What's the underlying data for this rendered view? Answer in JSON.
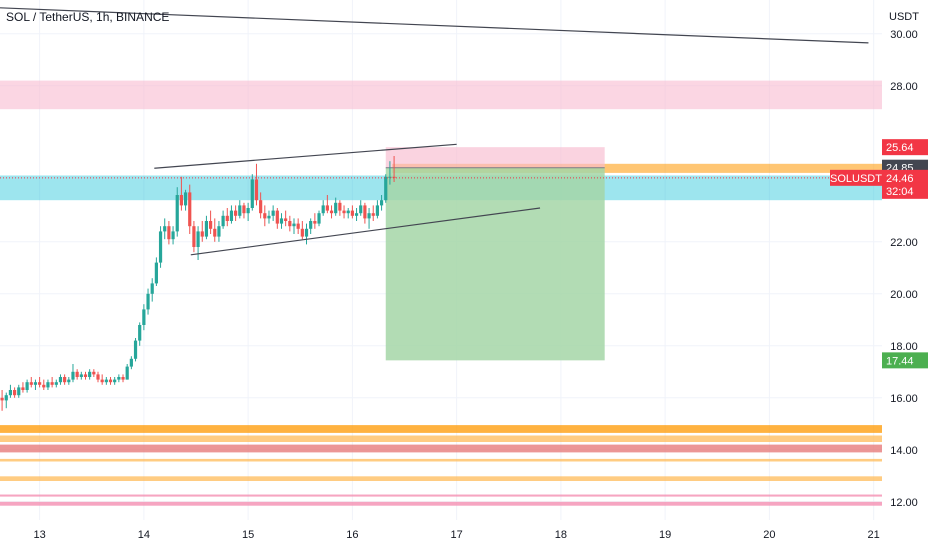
{
  "header": {
    "symbol_title": "SOL / TetherUS, 1h, BINANCE",
    "price_unit": "USDT"
  },
  "chart_data": {
    "type": "candlestick",
    "symbol": "SOLUSDT",
    "ylim": [
      11.3,
      31.3
    ],
    "xlim": [
      12.62,
      21.08
    ],
    "y_ticks": [
      "30.00",
      "28.00",
      "22.00",
      "20.00",
      "18.00",
      "16.00",
      "14.00",
      "12.00"
    ],
    "x_ticks": [
      "13",
      "14",
      "15",
      "16",
      "17",
      "18",
      "19",
      "20",
      "21"
    ],
    "price_badges": [
      {
        "label": "25.64",
        "value": 25.64,
        "color": "#f23645"
      },
      {
        "label": "24.85",
        "value": 24.85,
        "color": "#434651"
      },
      {
        "label": "24.46",
        "value": 24.46,
        "color": "#f23645"
      },
      {
        "label": "32:04",
        "value": 23.96,
        "color": "#f23645"
      },
      {
        "label": "17.44",
        "value": 17.44,
        "color": "#4caf50"
      }
    ],
    "symbol_badge": "SOLUSDT",
    "last_price": 24.46,
    "zones": [
      {
        "name": "resistance-zone-28",
        "y1": 28.2,
        "y2": 27.1,
        "color": "#f8bbd0",
        "opacity": 0.6
      },
      {
        "name": "support-zone-24",
        "y1": 24.55,
        "y2": 23.6,
        "color": "#26c6da",
        "opacity": 0.45
      },
      {
        "name": "support-zone-14-8",
        "y1": 14.95,
        "y2": 14.65,
        "color": "#ff9800",
        "opacity": 0.75
      },
      {
        "name": "support-zone-14-4",
        "y1": 14.55,
        "y2": 14.3,
        "color": "#ffb74d",
        "opacity": 0.7
      },
      {
        "name": "support-zone-14-1",
        "y1": 14.2,
        "y2": 13.9,
        "color": "#e57373",
        "opacity": 0.75
      },
      {
        "name": "support-zone-13-6",
        "y1": 13.65,
        "y2": 13.55,
        "color": "#ffb74d",
        "opacity": 0.7
      },
      {
        "name": "support-zone-12-9",
        "y1": 12.98,
        "y2": 12.8,
        "color": "#ffb74d",
        "opacity": 0.7
      },
      {
        "name": "support-zone-12-2",
        "y1": 12.28,
        "y2": 12.2,
        "color": "#f48fb1",
        "opacity": 0.8
      },
      {
        "name": "support-zone-11-9",
        "y1": 12.0,
        "y2": 11.85,
        "color": "#f48fb1",
        "opacity": 0.8
      }
    ],
    "horizontal_bands": [
      {
        "name": "orange-band-24-85",
        "x_start": 16.38,
        "y1": 25.0,
        "y2": 24.65,
        "color": "#ff9800",
        "opacity": 0.55
      }
    ],
    "position": {
      "entry": 24.85,
      "stop": 25.64,
      "target": 17.44,
      "x_start": 16.32,
      "x_end": 18.42,
      "stop_color": "#f8bbd0",
      "target_color": "#a5d6a7"
    },
    "trendlines": [
      {
        "name": "long-trendline",
        "x1": 12.62,
        "y1": 31.0,
        "x2": 20.95,
        "y2": 29.65
      },
      {
        "name": "wedge-upper",
        "x1": 14.1,
        "y1": 24.83,
        "x2": 17.0,
        "y2": 25.75
      },
      {
        "name": "wedge-lower",
        "x1": 14.45,
        "y1": 21.5,
        "x2": 17.8,
        "y2": 23.3
      }
    ],
    "up_color": "#26a69a",
    "down_color": "#ef5350",
    "candles": [
      [
        12.64,
        16.0,
        16.3,
        15.5,
        15.9
      ],
      [
        12.68,
        15.9,
        16.2,
        15.6,
        16.1
      ],
      [
        12.72,
        16.1,
        16.5,
        16.0,
        16.3
      ],
      [
        12.76,
        16.3,
        16.4,
        16.0,
        16.1
      ],
      [
        12.8,
        16.1,
        16.5,
        16.0,
        16.4
      ],
      [
        12.84,
        16.4,
        16.6,
        16.2,
        16.3
      ],
      [
        12.88,
        16.3,
        16.7,
        16.2,
        16.6
      ],
      [
        12.92,
        16.6,
        16.8,
        16.4,
        16.5
      ],
      [
        12.96,
        16.5,
        16.7,
        16.3,
        16.6
      ],
      [
        13.0,
        16.6,
        16.8,
        16.4,
        16.5
      ],
      [
        13.04,
        16.5,
        16.7,
        16.3,
        16.4
      ],
      [
        13.08,
        16.4,
        16.7,
        16.3,
        16.6
      ],
      [
        13.12,
        16.6,
        16.8,
        16.4,
        16.5
      ],
      [
        13.16,
        16.5,
        16.7,
        16.4,
        16.6
      ],
      [
        13.2,
        16.6,
        16.9,
        16.5,
        16.8
      ],
      [
        13.24,
        16.8,
        16.9,
        16.5,
        16.6
      ],
      [
        13.28,
        16.6,
        16.8,
        16.5,
        16.7
      ],
      [
        13.32,
        16.7,
        17.3,
        16.6,
        17.0
      ],
      [
        13.36,
        17.0,
        17.1,
        16.7,
        16.8
      ],
      [
        13.4,
        16.8,
        17.0,
        16.7,
        16.9
      ],
      [
        13.44,
        16.9,
        17.0,
        16.7,
        16.8
      ],
      [
        13.48,
        16.8,
        17.1,
        16.7,
        17.0
      ],
      [
        13.52,
        17.0,
        17.1,
        16.8,
        16.9
      ],
      [
        13.56,
        16.9,
        17.0,
        16.6,
        16.7
      ],
      [
        13.6,
        16.7,
        16.9,
        16.5,
        16.6
      ],
      [
        13.64,
        16.6,
        16.8,
        16.5,
        16.7
      ],
      [
        13.68,
        16.7,
        16.8,
        16.5,
        16.6
      ],
      [
        13.72,
        16.6,
        16.8,
        16.5,
        16.7
      ],
      [
        13.76,
        16.7,
        16.9,
        16.6,
        16.8
      ],
      [
        13.8,
        16.8,
        16.9,
        16.6,
        16.7
      ],
      [
        13.84,
        16.7,
        17.3,
        16.7,
        17.2
      ],
      [
        13.88,
        17.2,
        17.6,
        17.1,
        17.5
      ],
      [
        13.92,
        17.5,
        18.3,
        17.4,
        18.2
      ],
      [
        13.96,
        18.2,
        18.9,
        18.0,
        18.8
      ],
      [
        14.0,
        18.8,
        19.6,
        18.6,
        19.4
      ],
      [
        14.04,
        19.4,
        20.2,
        19.2,
        20.0
      ],
      [
        14.08,
        20.0,
        20.6,
        19.7,
        20.4
      ],
      [
        14.12,
        20.4,
        21.4,
        20.3,
        21.2
      ],
      [
        14.16,
        21.2,
        22.6,
        21.0,
        22.4
      ],
      [
        14.2,
        22.4,
        22.9,
        22.1,
        22.6
      ],
      [
        14.24,
        22.6,
        22.8,
        21.9,
        22.1
      ],
      [
        14.28,
        22.1,
        22.6,
        21.9,
        22.4
      ],
      [
        14.32,
        22.4,
        24.1,
        22.2,
        23.8
      ],
      [
        14.36,
        23.8,
        24.5,
        23.2,
        23.4
      ],
      [
        14.4,
        23.4,
        24.0,
        23.2,
        23.9
      ],
      [
        14.44,
        23.9,
        24.2,
        22.3,
        22.6
      ],
      [
        14.48,
        22.6,
        22.8,
        21.6,
        21.8
      ],
      [
        14.52,
        21.8,
        22.6,
        21.3,
        22.4
      ],
      [
        14.56,
        22.4,
        22.8,
        22.0,
        22.2
      ],
      [
        14.6,
        22.2,
        23.0,
        22.1,
        22.8
      ],
      [
        14.64,
        22.8,
        23.2,
        22.3,
        22.5
      ],
      [
        14.68,
        22.5,
        22.9,
        22.0,
        22.2
      ],
      [
        14.72,
        22.2,
        22.8,
        22.0,
        22.6
      ],
      [
        14.76,
        22.6,
        23.2,
        22.5,
        23.0
      ],
      [
        14.8,
        23.0,
        23.3,
        22.6,
        22.8
      ],
      [
        14.84,
        22.8,
        23.4,
        22.7,
        23.2
      ],
      [
        14.88,
        23.2,
        23.4,
        22.8,
        23.0
      ],
      [
        14.92,
        23.0,
        23.6,
        22.9,
        23.4
      ],
      [
        14.96,
        23.4,
        23.5,
        22.9,
        23.1
      ],
      [
        15.0,
        23.1,
        23.5,
        22.8,
        23.3
      ],
      [
        15.04,
        23.3,
        24.6,
        23.2,
        24.4
      ],
      [
        15.08,
        24.4,
        25.0,
        23.4,
        23.6
      ],
      [
        15.12,
        23.6,
        23.9,
        22.9,
        23.1
      ],
      [
        15.16,
        23.1,
        23.4,
        22.6,
        22.9
      ],
      [
        15.2,
        22.9,
        23.2,
        22.7,
        23.0
      ],
      [
        15.24,
        23.0,
        23.4,
        22.8,
        23.2
      ],
      [
        15.28,
        23.2,
        23.3,
        22.5,
        22.7
      ],
      [
        15.32,
        22.7,
        23.1,
        22.5,
        22.9
      ],
      [
        15.36,
        22.9,
        23.2,
        22.6,
        22.8
      ],
      [
        15.4,
        22.8,
        23.0,
        22.4,
        22.6
      ],
      [
        15.44,
        22.6,
        22.9,
        22.3,
        22.7
      ],
      [
        15.48,
        22.7,
        22.9,
        22.3,
        22.5
      ],
      [
        15.52,
        22.5,
        22.8,
        22.1,
        22.2
      ],
      [
        15.56,
        22.2,
        22.7,
        21.9,
        22.5
      ],
      [
        15.6,
        22.5,
        22.9,
        22.3,
        22.8
      ],
      [
        15.64,
        22.8,
        23.1,
        22.5,
        22.7
      ],
      [
        15.68,
        22.7,
        23.2,
        22.6,
        23.1
      ],
      [
        15.72,
        23.1,
        23.6,
        23.0,
        23.4
      ],
      [
        15.76,
        23.4,
        23.8,
        23.1,
        23.2
      ],
      [
        15.8,
        23.2,
        23.4,
        22.9,
        23.1
      ],
      [
        15.84,
        23.1,
        23.7,
        23.0,
        23.5
      ],
      [
        15.88,
        23.5,
        23.6,
        23.0,
        23.2
      ],
      [
        15.92,
        23.2,
        23.4,
        22.9,
        23.1
      ],
      [
        15.96,
        23.1,
        23.3,
        22.9,
        23.2
      ],
      [
        16.0,
        23.2,
        23.4,
        22.9,
        23.0
      ],
      [
        16.04,
        23.0,
        23.3,
        22.8,
        23.1
      ],
      [
        16.08,
        23.1,
        23.6,
        23.0,
        23.4
      ],
      [
        16.12,
        23.4,
        23.5,
        22.7,
        22.9
      ],
      [
        16.16,
        22.9,
        23.3,
        22.5,
        23.1
      ],
      [
        16.2,
        23.1,
        23.4,
        22.8,
        23.0
      ],
      [
        16.24,
        23.0,
        23.6,
        22.9,
        23.4
      ],
      [
        16.28,
        23.4,
        23.8,
        23.2,
        23.6
      ],
      [
        16.32,
        23.6,
        24.6,
        23.5,
        24.5
      ],
      [
        16.36,
        24.5,
        25.1,
        24.2,
        24.5
      ],
      [
        16.4,
        24.5,
        25.3,
        24.3,
        24.46
      ]
    ]
  }
}
